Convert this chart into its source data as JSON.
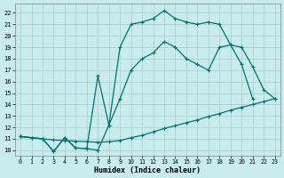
{
  "xlabel": "Humidex (Indice chaleur)",
  "bg_color": "#c8ecec",
  "grid_color": "#b0d0d0",
  "line_color": "#007070",
  "xlim": [
    -0.5,
    23.5
  ],
  "ylim": [
    9.5,
    22.8
  ],
  "xticks": [
    0,
    1,
    2,
    3,
    4,
    5,
    6,
    7,
    8,
    9,
    10,
    11,
    12,
    13,
    14,
    15,
    16,
    17,
    18,
    19,
    20,
    21,
    22,
    23
  ],
  "yticks": [
    10,
    11,
    12,
    13,
    14,
    15,
    16,
    17,
    18,
    19,
    20,
    21,
    22
  ],
  "line1_x": [
    0,
    1,
    2,
    3,
    4,
    5,
    6,
    7,
    8,
    9,
    10,
    11,
    12,
    13,
    14,
    15,
    16,
    17,
    18,
    19,
    20,
    21,
    22,
    23
  ],
  "line1_y": [
    11.2,
    11.1,
    11.0,
    10.9,
    10.85,
    10.8,
    10.75,
    10.7,
    10.75,
    10.85,
    11.1,
    11.3,
    11.6,
    11.9,
    12.15,
    12.4,
    12.65,
    12.95,
    13.2,
    13.5,
    13.75,
    14.0,
    14.25,
    14.5
  ],
  "line2_x": [
    0,
    1,
    2,
    3,
    4,
    5,
    6,
    7,
    8,
    9,
    10,
    11,
    12,
    13,
    14,
    15,
    16,
    17,
    18,
    19,
    20,
    21
  ],
  "line2_y": [
    11.2,
    11.1,
    11.0,
    9.9,
    11.1,
    10.2,
    10.15,
    10.0,
    12.2,
    19.0,
    21.0,
    21.2,
    21.5,
    22.2,
    21.5,
    21.2,
    21.0,
    21.2,
    21.0,
    19.2,
    17.5,
    14.5
  ],
  "line3_x": [
    0,
    2,
    3,
    4,
    5,
    6,
    7,
    8,
    9,
    10,
    11,
    12,
    13,
    14,
    15,
    16,
    17,
    18,
    19,
    20,
    21,
    22,
    23
  ],
  "line3_y": [
    11.2,
    11.0,
    9.9,
    11.1,
    10.2,
    10.15,
    16.5,
    12.2,
    14.5,
    17.0,
    18.0,
    18.5,
    19.5,
    19.0,
    18.0,
    17.5,
    17.0,
    19.0,
    19.2,
    19.0,
    17.3,
    15.3,
    14.5
  ]
}
